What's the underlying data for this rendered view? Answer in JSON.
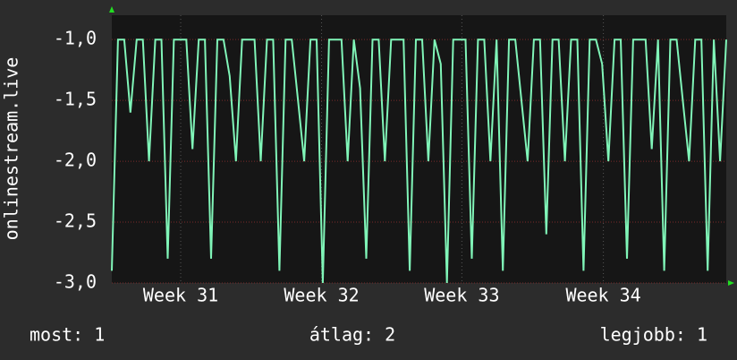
{
  "chart_data": {
    "type": "line",
    "y_label": "onlinestream.live",
    "values": [
      -2.9,
      -1,
      -1,
      -1.6,
      -1,
      -1,
      -2.0,
      -1,
      -1,
      -2.8,
      -1,
      -1,
      -1,
      -1.9,
      -1,
      -1,
      -2.8,
      -1,
      -1,
      -1.3,
      -2.0,
      -1,
      -1,
      -1,
      -2.0,
      -1,
      -1,
      -2.9,
      -1,
      -1,
      -1.5,
      -2.0,
      -1,
      -1,
      -3.0,
      -1,
      -1,
      -1,
      -2.0,
      -1,
      -1.4,
      -2.8,
      -1,
      -1,
      -2.0,
      -1,
      -1,
      -1,
      -2.9,
      -1,
      -1,
      -2.0,
      -1,
      -1.2,
      -3.0,
      -1,
      -1,
      -1,
      -2.8,
      -1,
      -1,
      -2.0,
      -1,
      -2.9,
      -1,
      -1,
      -1.5,
      -2.0,
      -1,
      -1,
      -2.6,
      -1,
      -1,
      -2.0,
      -1,
      -1,
      -2.9,
      -1,
      -1,
      -1.2,
      -2.0,
      -1,
      -1,
      -2.8,
      -1,
      -1,
      -1,
      -1.9,
      -1,
      -2.9,
      -1,
      -1,
      -1.5,
      -2.0,
      -1,
      -1,
      -2.9,
      -1,
      -2.0,
      -1
    ],
    "color": "#80f5b8",
    "xlim": [
      0,
      99
    ],
    "xticks": [
      {
        "value": 11.1,
        "label": "Week 31"
      },
      {
        "value": 33.8,
        "label": "Week 32"
      },
      {
        "value": 56.4,
        "label": "Week 33"
      },
      {
        "value": 79.2,
        "label": "Week 34"
      }
    ],
    "ylim": [
      -3,
      -0.8
    ],
    "yticks": [
      {
        "value": -3,
        "label": "-3,0"
      },
      {
        "value": -2.5,
        "label": "-2,5"
      },
      {
        "value": -2,
        "label": "-2,0"
      },
      {
        "value": -1.5,
        "label": "-1,5"
      },
      {
        "value": -1,
        "label": "-1,0"
      }
    ],
    "grid": true,
    "stats": [
      "most: 1",
      "átlag: 2",
      "legjobb: 1"
    ]
  }
}
